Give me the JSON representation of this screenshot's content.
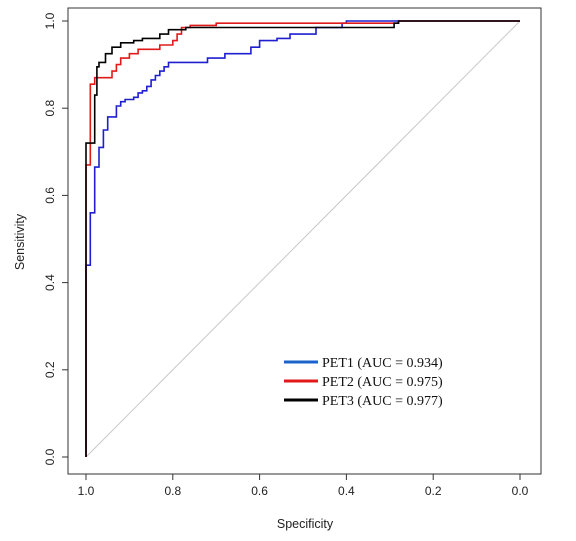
{
  "chart_data": {
    "type": "line",
    "title": "",
    "xlabel": "Specificity",
    "ylabel": "Sensitivity",
    "x_reversed": true,
    "xlim": [
      1.0,
      0.0
    ],
    "ylim": [
      0.0,
      1.0
    ],
    "x_ticks": [
      "1.0",
      "0.8",
      "0.6",
      "0.4",
      "0.2",
      "0.0"
    ],
    "y_ticks": [
      "0.0",
      "0.2",
      "0.4",
      "0.6",
      "0.8",
      "1.0"
    ],
    "grid": false,
    "reference_line": {
      "from": [
        1.0,
        0.0
      ],
      "to": [
        0.0,
        1.0
      ],
      "color": "#c8c8c8"
    },
    "legend": {
      "placement": "bottom-right",
      "entries": [
        "PET1 (AUC = 0.934)",
        "PET2 (AUC = 0.975)",
        "PET3 (AUC = 0.977)"
      ]
    },
    "series": [
      {
        "label": "PET1 (AUC = 0.934)",
        "color": "#1f1fd0",
        "legend_color": "#1a63c8",
        "points": [
          [
            1.0,
            0.0
          ],
          [
            1.0,
            0.44
          ],
          [
            0.99,
            0.44
          ],
          [
            0.99,
            0.56
          ],
          [
            0.98,
            0.56
          ],
          [
            0.98,
            0.665
          ],
          [
            0.97,
            0.665
          ],
          [
            0.97,
            0.71
          ],
          [
            0.96,
            0.71
          ],
          [
            0.96,
            0.75
          ],
          [
            0.95,
            0.75
          ],
          [
            0.95,
            0.78
          ],
          [
            0.93,
            0.78
          ],
          [
            0.93,
            0.805
          ],
          [
            0.92,
            0.805
          ],
          [
            0.92,
            0.815
          ],
          [
            0.91,
            0.815
          ],
          [
            0.91,
            0.82
          ],
          [
            0.89,
            0.82
          ],
          [
            0.89,
            0.825
          ],
          [
            0.88,
            0.825
          ],
          [
            0.88,
            0.835
          ],
          [
            0.87,
            0.835
          ],
          [
            0.87,
            0.84
          ],
          [
            0.86,
            0.84
          ],
          [
            0.86,
            0.85
          ],
          [
            0.85,
            0.85
          ],
          [
            0.85,
            0.865
          ],
          [
            0.84,
            0.865
          ],
          [
            0.84,
            0.875
          ],
          [
            0.83,
            0.875
          ],
          [
            0.83,
            0.885
          ],
          [
            0.82,
            0.885
          ],
          [
            0.82,
            0.895
          ],
          [
            0.81,
            0.895
          ],
          [
            0.81,
            0.905
          ],
          [
            0.72,
            0.905
          ],
          [
            0.72,
            0.915
          ],
          [
            0.68,
            0.915
          ],
          [
            0.68,
            0.925
          ],
          [
            0.62,
            0.925
          ],
          [
            0.62,
            0.94
          ],
          [
            0.6,
            0.94
          ],
          [
            0.6,
            0.955
          ],
          [
            0.56,
            0.955
          ],
          [
            0.56,
            0.96
          ],
          [
            0.53,
            0.96
          ],
          [
            0.53,
            0.97
          ],
          [
            0.47,
            0.97
          ],
          [
            0.47,
            0.985
          ],
          [
            0.41,
            0.985
          ],
          [
            0.41,
            0.995
          ],
          [
            0.4,
            0.995
          ],
          [
            0.4,
            1.0
          ],
          [
            0.0,
            1.0
          ]
        ]
      },
      {
        "label": "PET2 (AUC = 0.975)",
        "color": "#e01a1a",
        "legend_color": "#e01a1a",
        "points": [
          [
            1.0,
            0.0
          ],
          [
            1.0,
            0.67
          ],
          [
            0.99,
            0.67
          ],
          [
            0.99,
            0.855
          ],
          [
            0.98,
            0.855
          ],
          [
            0.98,
            0.87
          ],
          [
            0.94,
            0.87
          ],
          [
            0.94,
            0.885
          ],
          [
            0.93,
            0.885
          ],
          [
            0.93,
            0.9
          ],
          [
            0.92,
            0.9
          ],
          [
            0.92,
            0.915
          ],
          [
            0.9,
            0.915
          ],
          [
            0.9,
            0.925
          ],
          [
            0.88,
            0.925
          ],
          [
            0.88,
            0.935
          ],
          [
            0.83,
            0.935
          ],
          [
            0.83,
            0.945
          ],
          [
            0.8,
            0.945
          ],
          [
            0.8,
            0.955
          ],
          [
            0.79,
            0.955
          ],
          [
            0.79,
            0.97
          ],
          [
            0.78,
            0.97
          ],
          [
            0.78,
            0.985
          ],
          [
            0.76,
            0.985
          ],
          [
            0.76,
            0.99
          ],
          [
            0.7,
            0.99
          ],
          [
            0.7,
            0.995
          ],
          [
            0.28,
            0.995
          ],
          [
            0.28,
            1.0
          ],
          [
            0.0,
            1.0
          ]
        ]
      },
      {
        "label": "PET3 (AUC = 0.977)",
        "color": "#000000",
        "legend_color": "#000000",
        "points": [
          [
            1.0,
            0.0
          ],
          [
            1.0,
            0.72
          ],
          [
            0.98,
            0.72
          ],
          [
            0.98,
            0.83
          ],
          [
            0.975,
            0.83
          ],
          [
            0.975,
            0.895
          ],
          [
            0.97,
            0.895
          ],
          [
            0.97,
            0.905
          ],
          [
            0.955,
            0.905
          ],
          [
            0.955,
            0.925
          ],
          [
            0.94,
            0.925
          ],
          [
            0.94,
            0.94
          ],
          [
            0.92,
            0.94
          ],
          [
            0.92,
            0.95
          ],
          [
            0.89,
            0.95
          ],
          [
            0.89,
            0.955
          ],
          [
            0.87,
            0.955
          ],
          [
            0.87,
            0.96
          ],
          [
            0.83,
            0.96
          ],
          [
            0.83,
            0.97
          ],
          [
            0.81,
            0.97
          ],
          [
            0.81,
            0.98
          ],
          [
            0.77,
            0.98
          ],
          [
            0.77,
            0.985
          ],
          [
            0.29,
            0.985
          ],
          [
            0.29,
            0.995
          ],
          [
            0.28,
            0.995
          ],
          [
            0.28,
            1.0
          ],
          [
            0.0,
            1.0
          ]
        ]
      }
    ]
  }
}
